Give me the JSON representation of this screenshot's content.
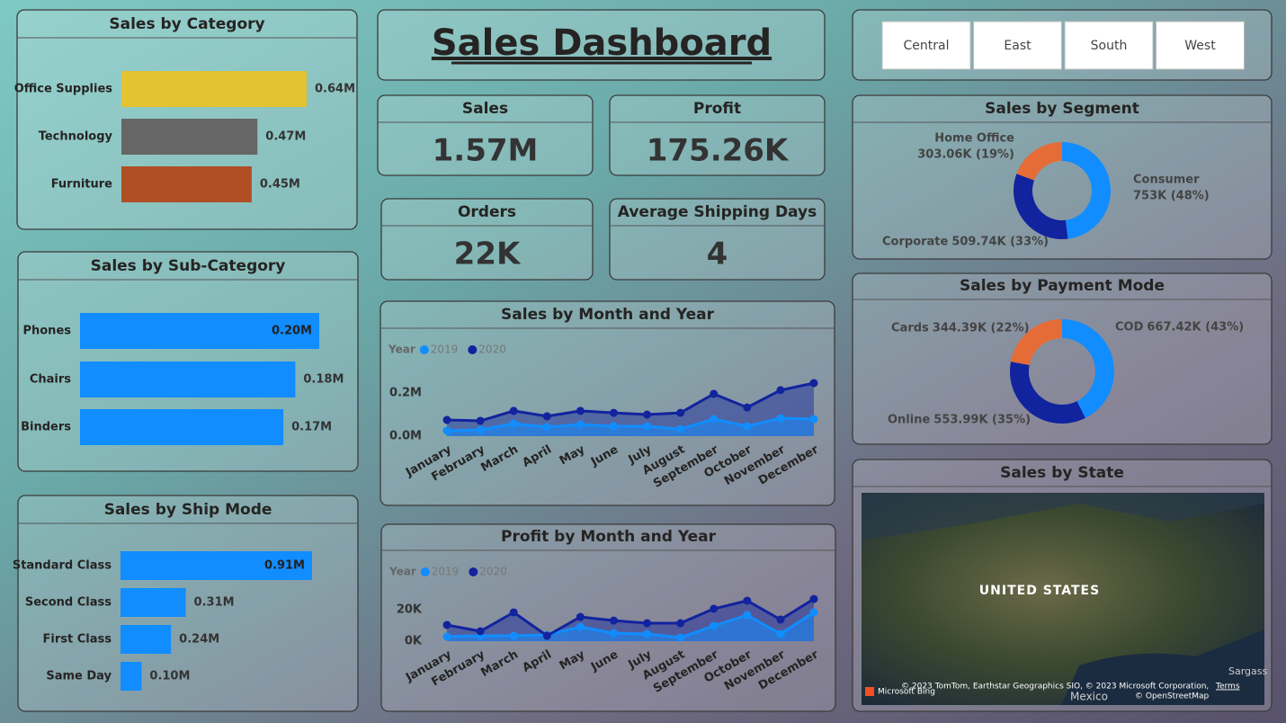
{
  "header": {
    "title": "Sales Dashboard"
  },
  "slicer": {
    "options": [
      "Central",
      "East",
      "South",
      "West"
    ]
  },
  "kpis": [
    {
      "label": "Sales",
      "value": "1.57M"
    },
    {
      "label": "Profit",
      "value": "175.26K"
    },
    {
      "label": "Orders",
      "value": "22K"
    },
    {
      "label": "Average Shipping Days",
      "value": "4"
    }
  ],
  "chart_data": [
    {
      "type": "bar",
      "orientation": "horizontal",
      "title": "Sales by Category",
      "categories": [
        "Office Supplies",
        "Technology",
        "Furniture"
      ],
      "values": [
        640000,
        470000,
        450000
      ],
      "value_labels": [
        "0.64M",
        "0.47M",
        "0.45M"
      ],
      "colors": [
        "#e3c331",
        "#666666",
        "#b04e24"
      ]
    },
    {
      "type": "bar",
      "orientation": "horizontal",
      "title": "Sales by Sub-Category",
      "categories": [
        "Phones",
        "Chairs",
        "Binders"
      ],
      "values": [
        200000,
        180000,
        170000
      ],
      "value_labels": [
        "0.20M",
        "0.18M",
        "0.17M"
      ],
      "colors": [
        "#118dff",
        "#118dff",
        "#118dff"
      ]
    },
    {
      "type": "bar",
      "orientation": "horizontal",
      "title": "Sales by Ship Mode",
      "categories": [
        "Standard Class",
        "Second Class",
        "First Class",
        "Same Day"
      ],
      "values": [
        910000,
        310000,
        240000,
        100000
      ],
      "value_labels": [
        "0.91M",
        "0.31M",
        "0.24M",
        "0.10M"
      ],
      "colors": [
        "#118dff",
        "#118dff",
        "#118dff",
        "#118dff"
      ]
    },
    {
      "type": "pie",
      "donut": true,
      "title": "Sales by Segment",
      "categories": [
        "Consumer",
        "Corporate",
        "Home Office"
      ],
      "values": [
        753000,
        509740,
        303060
      ],
      "value_labels": [
        "753K (48%)",
        "509.74K (33%)",
        "303.06K (19%)"
      ],
      "colors": [
        "#118dff",
        "#12239e",
        "#e66c37"
      ]
    },
    {
      "type": "pie",
      "donut": true,
      "title": "Sales by Payment Mode",
      "categories": [
        "COD",
        "Online",
        "Cards"
      ],
      "values": [
        667420,
        553990,
        344390
      ],
      "value_labels": [
        "667.42K (43%)",
        "553.99K (35%)",
        "344.39K (22%)"
      ],
      "colors": [
        "#118dff",
        "#12239e",
        "#e66c37"
      ]
    },
    {
      "type": "line",
      "area": true,
      "title": "Sales by Month and Year",
      "legend_title": "Year",
      "categories": [
        "January",
        "February",
        "March",
        "April",
        "May",
        "June",
        "July",
        "August",
        "September",
        "October",
        "November",
        "December"
      ],
      "series": [
        {
          "name": "2019",
          "color": "#118dff",
          "values": [
            25000,
            29000,
            58000,
            42000,
            54000,
            46000,
            46000,
            33000,
            79000,
            46000,
            83000,
            79000
          ]
        },
        {
          "name": "2020",
          "color": "#12239e",
          "values": [
            75000,
            71000,
            117000,
            92000,
            117000,
            108000,
            100000,
            108000,
            196000,
            133000,
            213000,
            246000
          ]
        }
      ],
      "ylim": [
        0,
        350000
      ],
      "yticks": [
        {
          "value": 0,
          "label": "0.0M"
        },
        {
          "value": 200000,
          "label": "0.2M"
        }
      ]
    },
    {
      "type": "line",
      "area": true,
      "title": "Profit by Month and Year",
      "legend_title": "Year",
      "categories": [
        "January",
        "February",
        "March",
        "April",
        "May",
        "June",
        "July",
        "August",
        "September",
        "October",
        "November",
        "December"
      ],
      "series": [
        {
          "name": "2019",
          "color": "#118dff",
          "values": [
            2900,
            3400,
            3400,
            4000,
            9100,
            5100,
            4600,
            2300,
            9700,
            16600,
            4600,
            18300
          ]
        },
        {
          "name": "2020",
          "color": "#12239e",
          "values": [
            10300,
            6300,
            18300,
            3400,
            15400,
            13100,
            11400,
            11400,
            20600,
            25700,
            13700,
            26800
          ]
        }
      ],
      "ylim": [
        0,
        36000
      ],
      "yticks": [
        {
          "value": 0,
          "label": "0K"
        },
        {
          "value": 20000,
          "label": "20K"
        }
      ]
    }
  ],
  "map": {
    "title": "Sales by State",
    "country": "UNITED STATES",
    "neighbor": "Mexico",
    "sea": "Sargass",
    "attribution": "© 2023 TomTom, Earthstar Geographics SIO, © 2023 Microsoft Corporation,",
    "terms": "Terms",
    "osm": "© OpenStreetMap",
    "logo": "Microsoft Bing"
  }
}
